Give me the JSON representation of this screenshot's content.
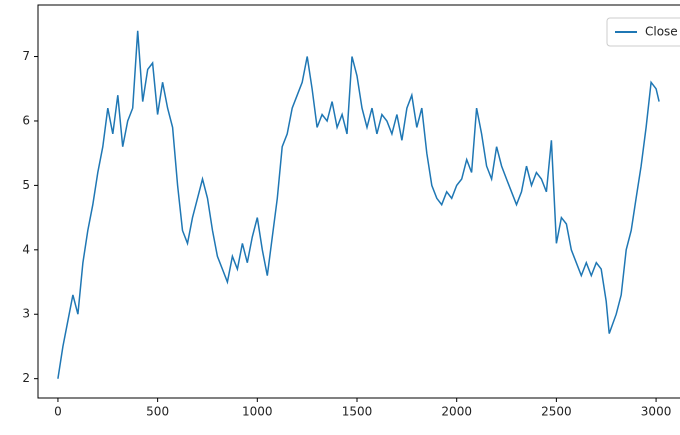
{
  "chart_data": {
    "type": "line",
    "x": [
      0,
      25,
      50,
      75,
      100,
      125,
      150,
      175,
      200,
      225,
      250,
      275,
      300,
      325,
      350,
      375,
      400,
      425,
      450,
      475,
      500,
      525,
      550,
      575,
      600,
      625,
      650,
      675,
      700,
      725,
      750,
      775,
      800,
      825,
      850,
      875,
      900,
      925,
      950,
      975,
      1000,
      1025,
      1050,
      1075,
      1100,
      1125,
      1150,
      1175,
      1200,
      1225,
      1250,
      1275,
      1300,
      1325,
      1350,
      1375,
      1400,
      1425,
      1450,
      1475,
      1500,
      1525,
      1550,
      1575,
      1600,
      1625,
      1650,
      1675,
      1700,
      1725,
      1750,
      1775,
      1800,
      1825,
      1850,
      1875,
      1900,
      1925,
      1950,
      1975,
      2000,
      2025,
      2050,
      2075,
      2100,
      2125,
      2150,
      2175,
      2200,
      2225,
      2250,
      2275,
      2300,
      2325,
      2350,
      2375,
      2400,
      2425,
      2450,
      2475,
      2500,
      2525,
      2550,
      2575,
      2600,
      2625,
      2650,
      2675,
      2700,
      2725,
      2750,
      2765,
      2800,
      2825,
      2850,
      2875,
      2900,
      2925,
      2950,
      2975,
      3000,
      3015
    ],
    "series": [
      {
        "name": "Close",
        "color": "#1f77b4",
        "values": [
          2.0,
          2.5,
          2.9,
          3.3,
          3.0,
          3.8,
          4.3,
          4.7,
          5.2,
          5.6,
          6.2,
          5.8,
          6.4,
          5.6,
          6.0,
          6.2,
          7.4,
          6.3,
          6.8,
          6.9,
          6.1,
          6.6,
          6.2,
          5.9,
          5.0,
          4.3,
          4.1,
          4.5,
          4.8,
          5.1,
          4.8,
          4.3,
          3.9,
          3.7,
          3.5,
          3.9,
          3.7,
          4.1,
          3.8,
          4.2,
          4.5,
          4.0,
          3.6,
          4.2,
          4.8,
          5.6,
          5.8,
          6.2,
          6.4,
          6.6,
          7.0,
          6.5,
          5.9,
          6.1,
          6.0,
          6.3,
          5.9,
          6.1,
          5.8,
          7.0,
          6.7,
          6.2,
          5.9,
          6.2,
          5.8,
          6.1,
          6.0,
          5.8,
          6.1,
          5.7,
          6.2,
          6.4,
          5.9,
          6.2,
          5.5,
          5.0,
          4.8,
          4.7,
          4.9,
          4.8,
          5.0,
          5.1,
          5.4,
          5.2,
          6.2,
          5.8,
          5.3,
          5.1,
          5.6,
          5.3,
          5.1,
          4.9,
          4.7,
          4.9,
          5.3,
          5.0,
          5.2,
          5.1,
          4.9,
          5.7,
          4.1,
          4.5,
          4.4,
          4.0,
          3.8,
          3.6,
          3.8,
          3.6,
          3.8,
          3.7,
          3.2,
          2.7,
          3.0,
          3.3,
          4.0,
          4.3,
          4.8,
          5.3,
          5.9,
          6.6,
          6.5,
          6.3
        ]
      }
    ],
    "xlim": [
      -100,
      3120
    ],
    "ylim": [
      1.7,
      7.8
    ],
    "xticks": [
      0,
      500,
      1000,
      1500,
      2000,
      2500,
      3000
    ],
    "yticks": [
      2,
      3,
      4,
      5,
      6,
      7
    ],
    "legend": "upper right",
    "grid": false
  }
}
